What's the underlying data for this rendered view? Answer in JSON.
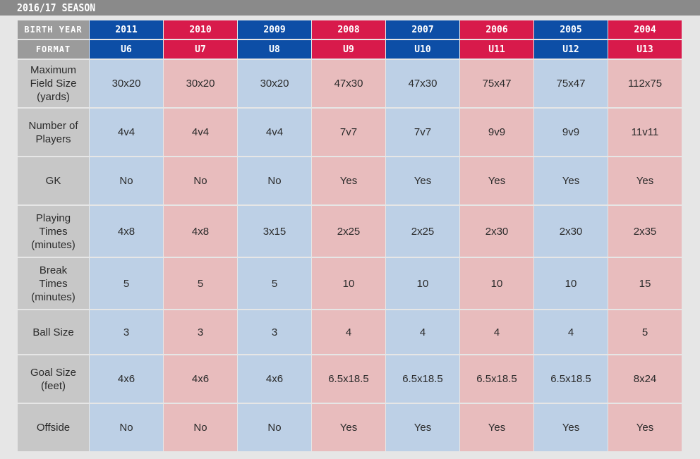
{
  "season_title": "2016/17 SEASON",
  "colors": {
    "blue_header": "#0d4ea6",
    "red_header": "#d81a4b",
    "blue_cell": "#bdd0e6",
    "red_cell": "#e8bcbd",
    "label_bg": "#c7c7c7"
  },
  "header_labels": {
    "birth_year": "BIRTH YEAR",
    "format": "FORMAT"
  },
  "columns": [
    {
      "birth_year": "2011",
      "format": "U6",
      "color": "blue"
    },
    {
      "birth_year": "2010",
      "format": "U7",
      "color": "red"
    },
    {
      "birth_year": "2009",
      "format": "U8",
      "color": "blue"
    },
    {
      "birth_year": "2008",
      "format": "U9",
      "color": "red"
    },
    {
      "birth_year": "2007",
      "format": "U10",
      "color": "blue"
    },
    {
      "birth_year": "2006",
      "format": "U11",
      "color": "red"
    },
    {
      "birth_year": "2005",
      "format": "U12",
      "color": "blue"
    },
    {
      "birth_year": "2004",
      "format": "U13",
      "color": "red"
    }
  ],
  "rows": [
    {
      "label": "Maximum\nField Size\n(yards)",
      "values": [
        "30x20",
        "30x20",
        "30x20",
        "47x30",
        "47x30",
        "75x47",
        "75x47",
        "112x75"
      ]
    },
    {
      "label": "Number of\nPlayers",
      "values": [
        "4v4",
        "4v4",
        "4v4",
        "7v7",
        "7v7",
        "9v9",
        "9v9",
        "11v11"
      ]
    },
    {
      "label": "GK",
      "values": [
        "No",
        "No",
        "No",
        "Yes",
        "Yes",
        "Yes",
        "Yes",
        "Yes"
      ]
    },
    {
      "label": "Playing\nTimes\n(minutes)",
      "values": [
        "4x8",
        "4x8",
        "3x15",
        "2x25",
        "2x25",
        "2x30",
        "2x30",
        "2x35"
      ]
    },
    {
      "label": "Break\nTimes\n(minutes)",
      "values": [
        "5",
        "5",
        "5",
        "10",
        "10",
        "10",
        "10",
        "15"
      ]
    },
    {
      "label": "Ball Size",
      "values": [
        "3",
        "3",
        "3",
        "4",
        "4",
        "4",
        "4",
        "5"
      ]
    },
    {
      "label": "Goal Size\n(feet)",
      "values": [
        "4x6",
        "4x6",
        "4x6",
        "6.5x18.5",
        "6.5x18.5",
        "6.5x18.5",
        "6.5x18.5",
        "8x24"
      ]
    },
    {
      "label": "Offside",
      "values": [
        "No",
        "No",
        "No",
        "Yes",
        "Yes",
        "Yes",
        "Yes",
        "Yes"
      ]
    }
  ]
}
